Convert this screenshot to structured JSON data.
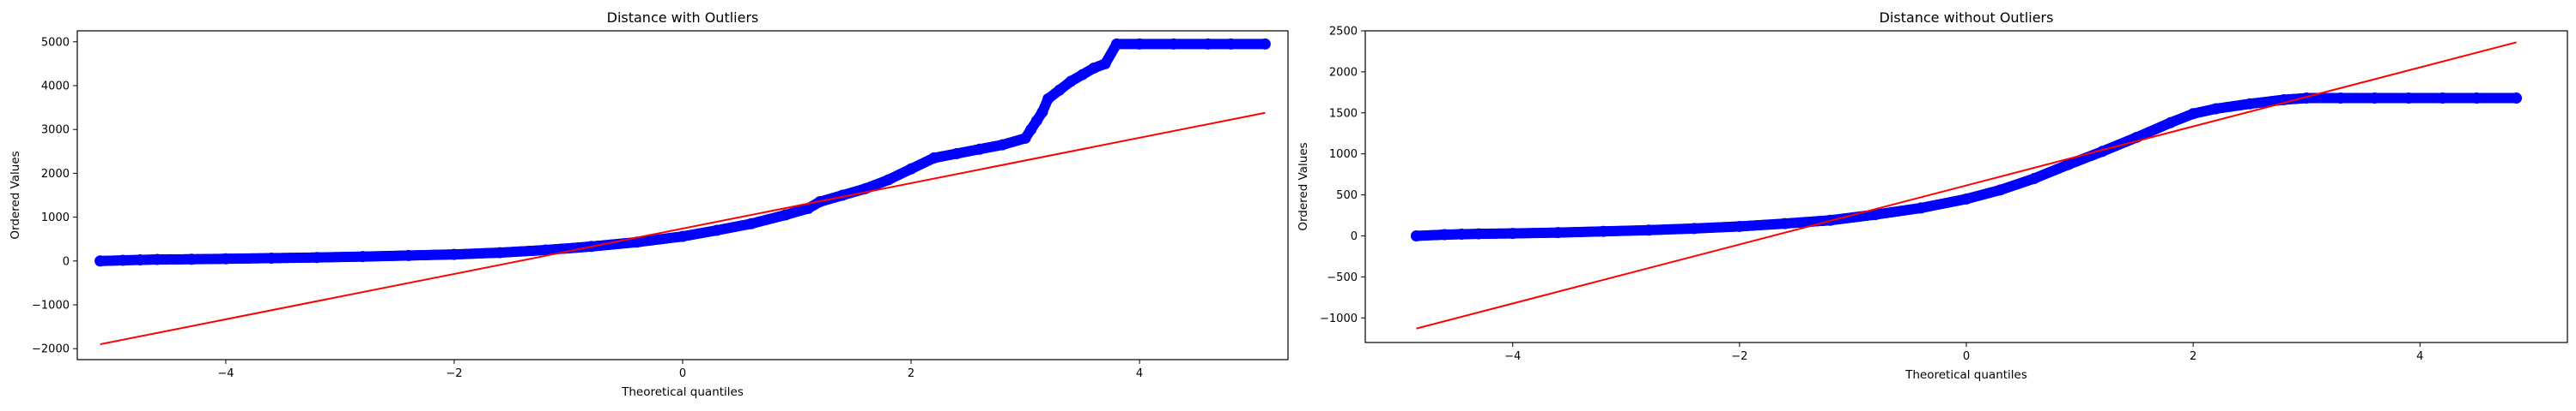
{
  "chart_data": [
    {
      "type": "scatter",
      "title": "Distance with Outliers",
      "xlabel": "Theoretical quantiles",
      "ylabel": "Ordered Values",
      "xlim": [
        -5.3,
        5.3
      ],
      "ylim": [
        -2250,
        5250
      ],
      "xticks": [
        -4,
        -2,
        0,
        2,
        4
      ],
      "xtick_labels": [
        "−4",
        "−2",
        "0",
        "2",
        "4"
      ],
      "yticks": [
        -2000,
        -1000,
        0,
        1000,
        2000,
        3000,
        4000,
        5000
      ],
      "ytick_labels": [
        "−2000",
        "−1000",
        "0",
        "1000",
        "2000",
        "3000",
        "4000",
        "5000"
      ],
      "grid": false,
      "colors": {
        "points": "#0000ff",
        "fit_line": "#ff0000"
      },
      "series": [
        {
          "kind": "points",
          "x": [
            -5.1,
            -4.9,
            -4.75,
            -4.6,
            -4.3,
            -4.0,
            -3.6,
            -3.2,
            -2.8,
            -2.4,
            -2.0,
            -1.6,
            -1.2,
            -0.8,
            -0.4,
            0.0,
            0.3,
            0.6,
            0.9,
            1.1,
            1.2,
            1.4,
            1.6,
            1.8,
            2.0,
            2.2,
            2.4,
            2.6,
            2.8,
            3.0,
            3.05,
            3.1,
            3.15,
            3.2,
            3.3,
            3.4,
            3.5,
            3.6,
            3.7,
            3.8,
            4.0,
            4.3,
            4.6,
            4.8,
            5.1
          ],
          "y": [
            0,
            15,
            25,
            35,
            40,
            50,
            65,
            80,
            100,
            125,
            150,
            190,
            250,
            330,
            430,
            560,
            700,
            850,
            1050,
            1200,
            1350,
            1500,
            1650,
            1850,
            2100,
            2350,
            2450,
            2550,
            2650,
            2800,
            3000,
            3200,
            3400,
            3700,
            3900,
            4100,
            4250,
            4400,
            4500,
            4950,
            4950,
            4950,
            4950,
            4950,
            4950
          ]
        },
        {
          "kind": "line",
          "x": [
            -5.1,
            5.1
          ],
          "y": [
            -1900,
            3380
          ]
        }
      ]
    },
    {
      "type": "scatter",
      "title": "Distance without Outliers",
      "xlabel": "Theoretical quantiles",
      "ylabel": "Ordered Values",
      "xlim": [
        -5.3,
        5.3
      ],
      "ylim": [
        -1300,
        2500
      ],
      "xticks": [
        -4,
        -2,
        0,
        2,
        4
      ],
      "xtick_labels": [
        "−4",
        "−2",
        "0",
        "2",
        "4"
      ],
      "yticks": [
        -1000,
        -500,
        0,
        500,
        1000,
        1500,
        2000,
        2500
      ],
      "ytick_labels": [
        "−1000",
        "−500",
        "0",
        "500",
        "1000",
        "1500",
        "2000",
        "2500"
      ],
      "grid": false,
      "colors": {
        "points": "#0000ff",
        "fit_line": "#ff0000"
      },
      "series": [
        {
          "kind": "points",
          "x": [
            -4.85,
            -4.6,
            -4.45,
            -4.3,
            -4.0,
            -3.6,
            -3.2,
            -2.8,
            -2.4,
            -2.0,
            -1.6,
            -1.2,
            -0.8,
            -0.4,
            0.0,
            0.3,
            0.6,
            0.9,
            1.2,
            1.5,
            1.8,
            2.0,
            2.2,
            2.5,
            2.8,
            3.0,
            3.3,
            3.6,
            3.9,
            4.2,
            4.5,
            4.85
          ],
          "y": [
            0,
            15,
            20,
            25,
            30,
            40,
            55,
            70,
            90,
            115,
            150,
            190,
            260,
            340,
            450,
            560,
            700,
            870,
            1030,
            1200,
            1380,
            1490,
            1550,
            1610,
            1660,
            1680,
            1680,
            1680,
            1680,
            1680,
            1680,
            1680
          ]
        },
        {
          "kind": "line",
          "x": [
            -4.85,
            4.85
          ],
          "y": [
            -1130,
            2360
          ]
        }
      ]
    }
  ]
}
